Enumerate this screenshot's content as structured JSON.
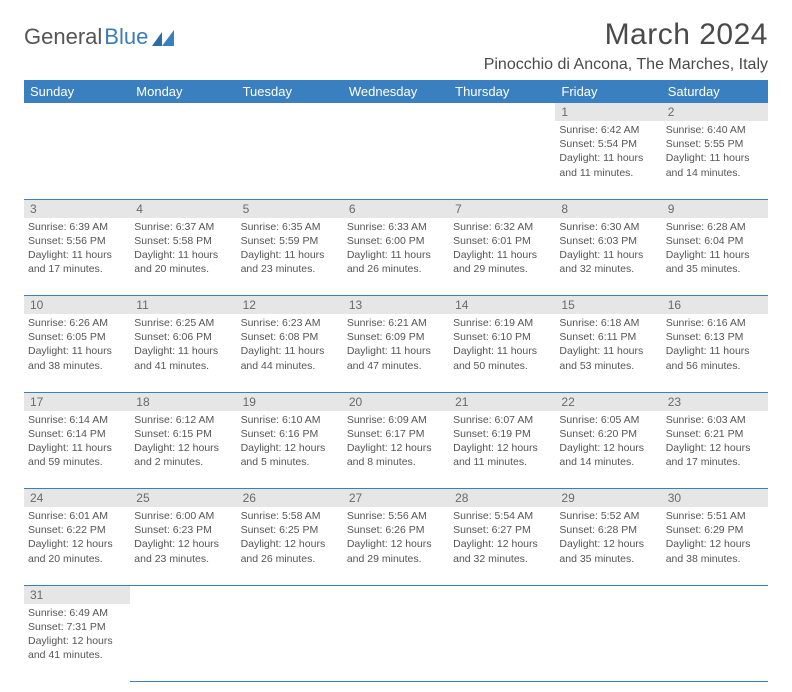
{
  "brand": {
    "part1": "General",
    "part2": "Blue"
  },
  "title": "March 2024",
  "location": "Pinocchio di Ancona, The Marches, Italy",
  "colors": {
    "header_bg": "#3a80c0",
    "daynum_bg": "#e6e6e6",
    "text": "#555555"
  },
  "weekdays": [
    "Sunday",
    "Monday",
    "Tuesday",
    "Wednesday",
    "Thursday",
    "Friday",
    "Saturday"
  ],
  "weeks": [
    [
      null,
      null,
      null,
      null,
      null,
      {
        "n": "1",
        "sr": "6:42 AM",
        "ss": "5:54 PM",
        "dl": "11 hours and 11 minutes."
      },
      {
        "n": "2",
        "sr": "6:40 AM",
        "ss": "5:55 PM",
        "dl": "11 hours and 14 minutes."
      }
    ],
    [
      {
        "n": "3",
        "sr": "6:39 AM",
        "ss": "5:56 PM",
        "dl": "11 hours and 17 minutes."
      },
      {
        "n": "4",
        "sr": "6:37 AM",
        "ss": "5:58 PM",
        "dl": "11 hours and 20 minutes."
      },
      {
        "n": "5",
        "sr": "6:35 AM",
        "ss": "5:59 PM",
        "dl": "11 hours and 23 minutes."
      },
      {
        "n": "6",
        "sr": "6:33 AM",
        "ss": "6:00 PM",
        "dl": "11 hours and 26 minutes."
      },
      {
        "n": "7",
        "sr": "6:32 AM",
        "ss": "6:01 PM",
        "dl": "11 hours and 29 minutes."
      },
      {
        "n": "8",
        "sr": "6:30 AM",
        "ss": "6:03 PM",
        "dl": "11 hours and 32 minutes."
      },
      {
        "n": "9",
        "sr": "6:28 AM",
        "ss": "6:04 PM",
        "dl": "11 hours and 35 minutes."
      }
    ],
    [
      {
        "n": "10",
        "sr": "6:26 AM",
        "ss": "6:05 PM",
        "dl": "11 hours and 38 minutes."
      },
      {
        "n": "11",
        "sr": "6:25 AM",
        "ss": "6:06 PM",
        "dl": "11 hours and 41 minutes."
      },
      {
        "n": "12",
        "sr": "6:23 AM",
        "ss": "6:08 PM",
        "dl": "11 hours and 44 minutes."
      },
      {
        "n": "13",
        "sr": "6:21 AM",
        "ss": "6:09 PM",
        "dl": "11 hours and 47 minutes."
      },
      {
        "n": "14",
        "sr": "6:19 AM",
        "ss": "6:10 PM",
        "dl": "11 hours and 50 minutes."
      },
      {
        "n": "15",
        "sr": "6:18 AM",
        "ss": "6:11 PM",
        "dl": "11 hours and 53 minutes."
      },
      {
        "n": "16",
        "sr": "6:16 AM",
        "ss": "6:13 PM",
        "dl": "11 hours and 56 minutes."
      }
    ],
    [
      {
        "n": "17",
        "sr": "6:14 AM",
        "ss": "6:14 PM",
        "dl": "11 hours and 59 minutes."
      },
      {
        "n": "18",
        "sr": "6:12 AM",
        "ss": "6:15 PM",
        "dl": "12 hours and 2 minutes."
      },
      {
        "n": "19",
        "sr": "6:10 AM",
        "ss": "6:16 PM",
        "dl": "12 hours and 5 minutes."
      },
      {
        "n": "20",
        "sr": "6:09 AM",
        "ss": "6:17 PM",
        "dl": "12 hours and 8 minutes."
      },
      {
        "n": "21",
        "sr": "6:07 AM",
        "ss": "6:19 PM",
        "dl": "12 hours and 11 minutes."
      },
      {
        "n": "22",
        "sr": "6:05 AM",
        "ss": "6:20 PM",
        "dl": "12 hours and 14 minutes."
      },
      {
        "n": "23",
        "sr": "6:03 AM",
        "ss": "6:21 PM",
        "dl": "12 hours and 17 minutes."
      }
    ],
    [
      {
        "n": "24",
        "sr": "6:01 AM",
        "ss": "6:22 PM",
        "dl": "12 hours and 20 minutes."
      },
      {
        "n": "25",
        "sr": "6:00 AM",
        "ss": "6:23 PM",
        "dl": "12 hours and 23 minutes."
      },
      {
        "n": "26",
        "sr": "5:58 AM",
        "ss": "6:25 PM",
        "dl": "12 hours and 26 minutes."
      },
      {
        "n": "27",
        "sr": "5:56 AM",
        "ss": "6:26 PM",
        "dl": "12 hours and 29 minutes."
      },
      {
        "n": "28",
        "sr": "5:54 AM",
        "ss": "6:27 PM",
        "dl": "12 hours and 32 minutes."
      },
      {
        "n": "29",
        "sr": "5:52 AM",
        "ss": "6:28 PM",
        "dl": "12 hours and 35 minutes."
      },
      {
        "n": "30",
        "sr": "5:51 AM",
        "ss": "6:29 PM",
        "dl": "12 hours and 38 minutes."
      }
    ],
    [
      {
        "n": "31",
        "sr": "6:49 AM",
        "ss": "7:31 PM",
        "dl": "12 hours and 41 minutes."
      },
      null,
      null,
      null,
      null,
      null,
      null
    ]
  ],
  "labels": {
    "sunrise": "Sunrise:",
    "sunset": "Sunset:",
    "daylight": "Daylight:"
  }
}
